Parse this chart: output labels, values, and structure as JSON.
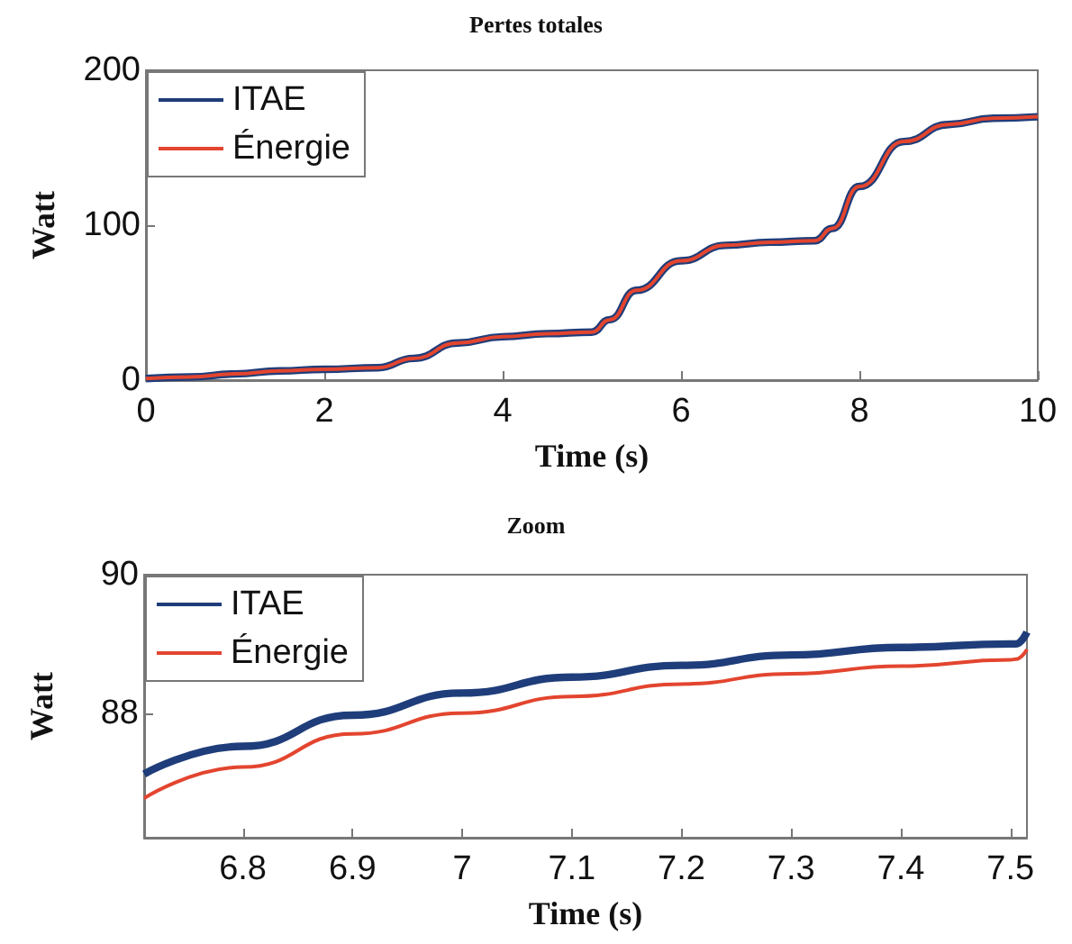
{
  "chart_data": [
    {
      "type": "line",
      "title": "Pertes totales",
      "xlabel": "Time (s)",
      "ylabel": "Watt",
      "xlim": [
        0,
        10
      ],
      "xticks": [
        0,
        2,
        4,
        6,
        8,
        10
      ],
      "ylim": [
        0,
        200
      ],
      "yticks": [
        0,
        100,
        200
      ],
      "grid": false,
      "legend": "top left",
      "marker": "none",
      "line_style": "solid",
      "x": [
        0,
        0.5,
        1,
        1.5,
        2,
        2.6,
        3,
        3.5,
        4,
        4.5,
        5,
        5.2,
        5.5,
        6,
        6.5,
        7,
        7.5,
        7.7,
        8,
        8.5,
        9,
        9.5,
        10
      ],
      "series": [
        {
          "name": "ITAE",
          "color": "#1f3d7a",
          "values": [
            1,
            2,
            4,
            6,
            7,
            8,
            14,
            24,
            28,
            30,
            31,
            39,
            58,
            77,
            87,
            89,
            90,
            98,
            125,
            154,
            165,
            169,
            170
          ]
        },
        {
          "name": "Énergie",
          "color": "#e3452f",
          "values": [
            1,
            2,
            4,
            6,
            7,
            8,
            14,
            24,
            28,
            30,
            31,
            39,
            58,
            77,
            87,
            89,
            90,
            98,
            125,
            154,
            165,
            169,
            170
          ]
        }
      ]
    },
    {
      "type": "line",
      "title": "Zoom",
      "xlabel": "Time (s)",
      "ylabel": "Watt",
      "xlim": [
        6.71,
        7.515
      ],
      "xticks": [
        6.8,
        6.9,
        7,
        7.1,
        7.2,
        7.3,
        7.4,
        7.5
      ],
      "ylim": [
        86.2,
        90
      ],
      "yticks": [
        88,
        90
      ],
      "grid": false,
      "legend": "top left",
      "marker": "none",
      "line_style": "solid",
      "x": [
        6.71,
        6.8,
        6.9,
        7,
        7.1,
        7.2,
        7.3,
        7.4,
        7.5,
        7.505,
        7.515
      ],
      "series": [
        {
          "name": "ITAE",
          "color": "#1f3d7a",
          "values": [
            87.12,
            87.52,
            87.97,
            88.29,
            88.52,
            88.69,
            88.84,
            88.95,
            89.0,
            89.0,
            89.17
          ]
        },
        {
          "name": "Énergie",
          "color": "#e3452f",
          "values": [
            86.77,
            87.22,
            87.7,
            88.0,
            88.24,
            88.42,
            88.57,
            88.68,
            88.77,
            88.78,
            88.92
          ]
        }
      ]
    }
  ]
}
